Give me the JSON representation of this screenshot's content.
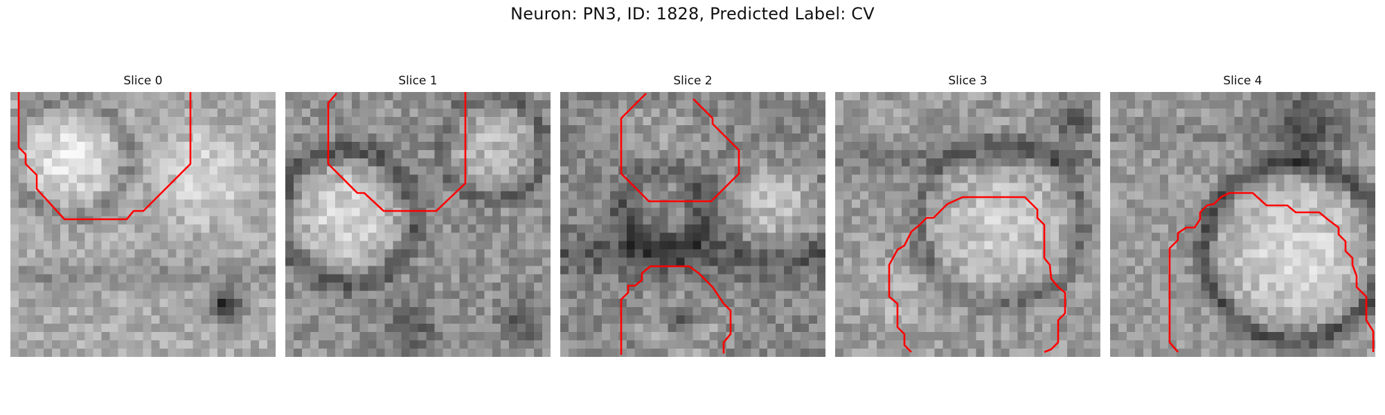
{
  "figure": {
    "title": "Neuron: PN3, ID: 1828, Predicted Label: CV"
  },
  "colors": {
    "contour": "#ff0000",
    "background": "#ffffff"
  },
  "panels": [
    {
      "title": "Slice 0",
      "image_description": "grayscale EM crop with red contour"
    },
    {
      "title": "Slice 1",
      "image_description": "grayscale EM crop with red contour"
    },
    {
      "title": "Slice 2",
      "image_description": "grayscale EM crop with red contours"
    },
    {
      "title": "Slice 3",
      "image_description": "grayscale EM crop with red contour"
    },
    {
      "title": "Slice 4",
      "image_description": "grayscale EM crop with red contour"
    }
  ]
}
